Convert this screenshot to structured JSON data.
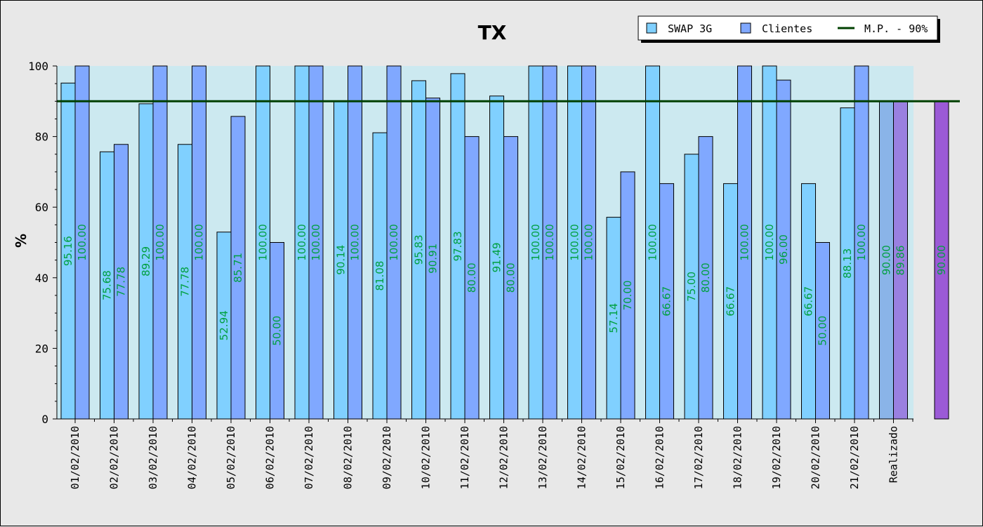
{
  "chart_data": {
    "type": "bar",
    "title": "TX",
    "ylabel": "%",
    "xlabel": "",
    "ylim": [
      0,
      100
    ],
    "yticks": [
      0,
      20,
      40,
      60,
      80,
      100
    ],
    "categories": [
      "01/02/2010",
      "02/02/2010",
      "03/02/2010",
      "04/02/2010",
      "05/02/2010",
      "06/02/2010",
      "07/02/2010",
      "08/02/2010",
      "09/02/2010",
      "10/02/2010",
      "11/02/2010",
      "12/02/2010",
      "13/02/2010",
      "14/02/2010",
      "15/02/2010",
      "16/02/2010",
      "17/02/2010",
      "18/02/2010",
      "19/02/2010",
      "20/02/2010",
      "21/02/2010",
      "Realizado"
    ],
    "series": [
      {
        "name": "SWAP 3G",
        "color": "#80d0ff",
        "values": [
          95.16,
          75.68,
          89.29,
          77.78,
          52.94,
          100.0,
          100.0,
          90.14,
          81.08,
          95.83,
          97.83,
          91.49,
          100.0,
          100.0,
          57.14,
          100.0,
          75.0,
          66.67,
          100.0,
          66.67,
          88.13,
          90.0
        ],
        "labels": [
          "95.16",
          "75.68",
          "89.29",
          "77.78",
          "52.94",
          "100.00",
          "100.00",
          "90.14",
          "81.08",
          "95.83",
          "97.83",
          "91.49",
          "100.00",
          "100.00",
          "57.14",
          "100.00",
          "75.00",
          "66.67",
          "100.00",
          "66.67",
          "88.13",
          "90.00"
        ]
      },
      {
        "name": "Clientes",
        "color": "#80a8ff",
        "values": [
          100.0,
          77.78,
          100.0,
          100.0,
          85.71,
          50.0,
          100.0,
          100.0,
          100.0,
          90.91,
          80.0,
          80.0,
          100.0,
          100.0,
          70.0,
          66.67,
          80.0,
          100.0,
          96.0,
          50.0,
          100.0,
          89.86
        ],
        "labels": [
          "100.00",
          "77.78",
          "100.00",
          "100.00",
          "85.71",
          "50.00",
          "100.00",
          "100.00",
          "100.00",
          "90.91",
          "80.00",
          "80.00",
          "100.00",
          "100.00",
          "70.00",
          "66.67",
          "80.00",
          "100.00",
          "96.00",
          "50.00",
          "100.00",
          "89.86"
        ]
      }
    ],
    "goal_line": {
      "name": "M.P. - 90%",
      "value": 90,
      "color": "#004000"
    },
    "extra_bar": {
      "value": 90.0,
      "label": "90.00",
      "color": "#9b5ad6"
    },
    "realizado_colors": {
      "SWAP 3G": "#8ab4e8",
      "Clientes": "#9a80e0"
    },
    "plot_background": "#cce9f0",
    "label_color": "#00a040",
    "legend_position": "top-right",
    "grid": false
  }
}
